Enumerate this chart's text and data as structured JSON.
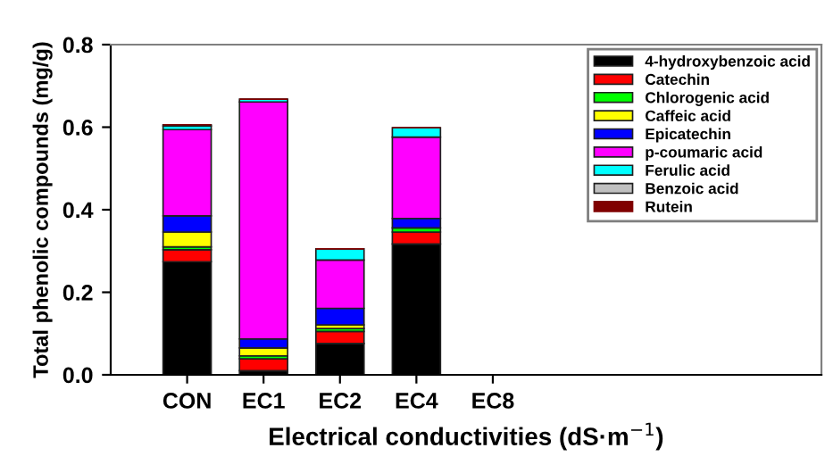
{
  "chart_data": {
    "type": "bar",
    "stacked": true,
    "xlabel": "Electrical conductivities (dS·m$^{−1}$)",
    "ylabel": "Total phenolic compounds (mg/g)",
    "categories": [
      "CON",
      "EC1",
      "EC2",
      "EC4",
      "EC8"
    ],
    "ylim": [
      0,
      0.8
    ],
    "yticks": [
      {
        "value": 0,
        "label": "0.0"
      },
      {
        "value": 0.2,
        "label": "0.2"
      },
      {
        "value": 0.4,
        "label": "0.4"
      },
      {
        "value": 0.6,
        "label": "0.6"
      },
      {
        "value": 0.8,
        "label": "0.8"
      }
    ],
    "grid": false,
    "legend": "top right",
    "series": [
      {
        "name": "4-hydroxybenzoic acid",
        "color": "#000000",
        "values": [
          0.274,
          0.01,
          0.076,
          0.317,
          0
        ]
      },
      {
        "name": "Catechin",
        "color": "#ff0000",
        "values": [
          0.029,
          0.029,
          0.029,
          0.029,
          0
        ]
      },
      {
        "name": "Chlorogenic acid",
        "color": "#00ff00",
        "values": [
          0.007,
          0.007,
          0.007,
          0.01,
          0
        ]
      },
      {
        "name": "Caffeic acid",
        "color": "#ffff00",
        "values": [
          0.036,
          0.019,
          0.009,
          null,
          0
        ]
      },
      {
        "name": "Epicatechin",
        "color": "#0000ff",
        "values": [
          0.039,
          0.022,
          0.04,
          0.023,
          0
        ]
      },
      {
        "name": "p-coumaric acid",
        "color": "#ff00ff",
        "values": [
          0.209,
          0.574,
          0.117,
          0.197,
          0
        ]
      },
      {
        "name": "Ferulic acid",
        "color": "#00ffff",
        "values": [
          0.009,
          0.007,
          0.027,
          0.023,
          0
        ]
      },
      {
        "name": "Benzoic acid",
        "color": "#c0c0c0",
        "values": [
          0.003,
          null,
          null,
          null,
          0
        ]
      },
      {
        "name": "Rutein",
        "color": "#800000",
        "values": [
          0,
          0,
          0,
          0,
          0
        ]
      }
    ]
  }
}
